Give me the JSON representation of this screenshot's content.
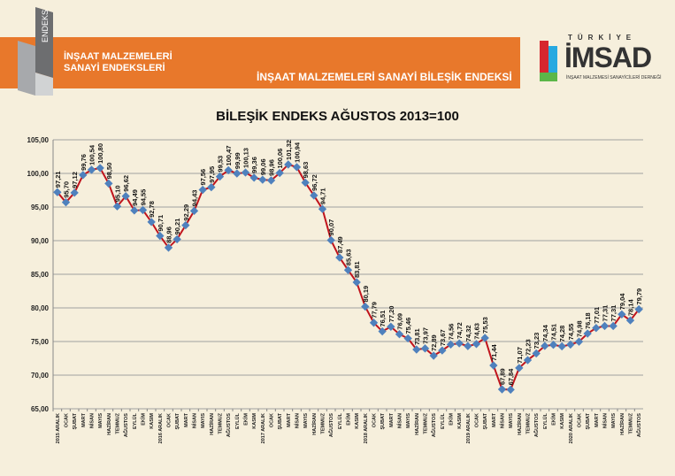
{
  "header": {
    "logo_text": "ENDEKS",
    "left_title_1": "İNŞAAT MALZEMELERİ",
    "left_title_2": "SANAYİ ENDEKSLERİ",
    "banner_title": "İNŞAAT MALZEMELERİ SANAYİ BİLEŞİK ENDEKSİ",
    "imsad_country": "TÜRKİYE",
    "imsad_name": "İMSAD",
    "imsad_sub": "İNŞAAT MALZEMESİ SANAYİCİLERİ DERNEĞİ"
  },
  "colors": {
    "line": "#c0141c",
    "marker": "#4f81bd",
    "banner": "#e8782b"
  },
  "chart_data": {
    "type": "line",
    "title": "BİLEŞİK ENDEKS AĞUSTOS 2013=100",
    "xlabel": "",
    "ylabel": "",
    "ylim": [
      65,
      105
    ],
    "yticks": [
      "65,00",
      "70,00",
      "75,00",
      "80,00",
      "85,00",
      "90,00",
      "95,00",
      "100,00",
      "105,00"
    ],
    "grid": true,
    "categories": [
      "2015 ARALIK",
      "OCAK",
      "ŞUBAT",
      "MART",
      "NİSAN",
      "MAYIS",
      "HAZİRAN",
      "TEMMUZ",
      "AĞUSTOS",
      "EYLÜL",
      "EKİM",
      "KASIM",
      "2016 ARALIK",
      "OCAK",
      "ŞUBAT",
      "MART",
      "NİSAN",
      "MAYIS",
      "HAZİRAN",
      "TEMMUZ",
      "AĞUSTOS",
      "EYLÜL",
      "EKİM",
      "KASIM",
      "2017 ARALIK",
      "OCAK",
      "ŞUBAT",
      "MART",
      "NİSAN",
      "MAYIS",
      "HAZİRAN",
      "TEMMUZ",
      "AĞUSTOS",
      "EYLÜL",
      "EKİM",
      "KASIM",
      "2018 ARALIK",
      "OCAK",
      "ŞUBAT",
      "MART",
      "NİSAN",
      "MAYIS",
      "HAZİRAN",
      "TEMMUZ",
      "AĞUSTOS",
      "EYLÜL",
      "EKİM",
      "KASIM",
      "2019 ARALIK",
      "OCAK",
      "ŞUBAT",
      "MART",
      "NİSAN",
      "MAYIS",
      "HAZİRAN",
      "TEMMUZ",
      "AĞUSTOS",
      "EYLÜL",
      "EKİM",
      "KASIM",
      "2020 ARALIK",
      "OCAK",
      "ŞUBAT",
      "MART",
      "NİSAN",
      "MAYIS",
      "HAZİRAN",
      "TEMMUZ",
      "AĞUSTOS"
    ],
    "values": [
      97.21,
      95.7,
      97.12,
      99.76,
      100.54,
      100.8,
      98.5,
      95.1,
      96.62,
      94.49,
      94.55,
      92.78,
      90.71,
      88.96,
      90.21,
      92.29,
      94.43,
      97.56,
      97.95,
      99.53,
      100.47,
      99.99,
      100.13,
      99.36,
      99.06,
      98.96,
      100.06,
      101.32,
      100.94,
      98.63,
      96.72,
      94.71,
      90.07,
      87.49,
      85.63,
      83.81,
      80.19,
      77.79,
      76.51,
      77.2,
      76.09,
      75.46,
      73.81,
      73.97,
      72.89,
      73.67,
      74.56,
      74.72,
      74.32,
      74.63,
      75.53,
      71.44,
      67.89,
      67.84,
      71.07,
      72.23,
      73.23,
      74.34,
      74.51,
      74.28,
      74.55,
      74.98,
      76.18,
      77.01,
      77.31,
      77.31,
      79.04,
      78.14,
      79.79
    ]
  }
}
